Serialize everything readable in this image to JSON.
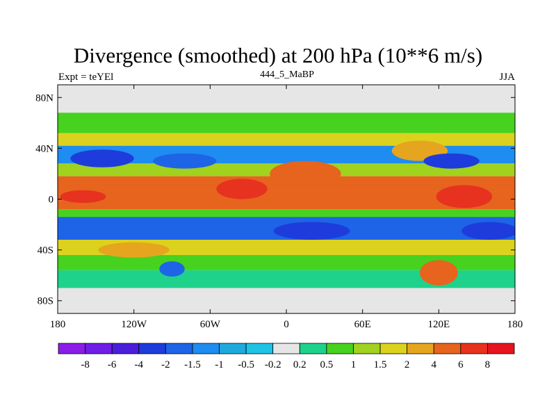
{
  "title": "Divergence (smoothed) at 200 hPa (10**6 m/s)",
  "left_label": "Expt = teYEl",
  "center_label": "444_5_MaBP",
  "right_label": "JJA",
  "chart_data": {
    "type": "heatmap",
    "title": "Divergence (smoothed) at 200 hPa (10**6 m/s)",
    "projection": "cylindrical equidistant",
    "xlim": [
      -180,
      180
    ],
    "ylim": [
      -90,
      90
    ],
    "x_ticks": [
      {
        "value": -180,
        "label": "180"
      },
      {
        "value": -120,
        "label": "120W"
      },
      {
        "value": -60,
        "label": "60W"
      },
      {
        "value": 0,
        "label": "0"
      },
      {
        "value": 60,
        "label": "60E"
      },
      {
        "value": 120,
        "label": "120E"
      },
      {
        "value": 180,
        "label": "180"
      }
    ],
    "y_ticks": [
      {
        "value": 80,
        "label": "80N"
      },
      {
        "value": 40,
        "label": "40N"
      },
      {
        "value": 0,
        "label": "0"
      },
      {
        "value": -40,
        "label": "40S"
      },
      {
        "value": -80,
        "label": "80S"
      }
    ],
    "colorbar": {
      "labels": [
        "-8",
        "-6",
        "-4",
        "-2",
        "-1.5",
        "-1",
        "-0.5",
        "-0.2",
        "0.2",
        "0.5",
        "1",
        "1.5",
        "2",
        "4",
        "6",
        "8"
      ],
      "colors": [
        "#8a1ee6",
        "#6e1ee6",
        "#4b1edc",
        "#1e3cdc",
        "#1e64e6",
        "#1e8cf0",
        "#1eaadc",
        "#1ec3e6",
        "#e6e6e6",
        "#1ed28c",
        "#46d21e",
        "#a0d21e",
        "#dcd21e",
        "#e6a51e",
        "#e6641e",
        "#e6321e",
        "#e6141e"
      ]
    },
    "bands": [
      {
        "lat_top": 90,
        "lat_bottom": 68,
        "value": 0
      },
      {
        "lat_top": 68,
        "lat_bottom": 52,
        "value": 0.5
      },
      {
        "lat_top": 52,
        "lat_bottom": 42,
        "value": 1.5
      },
      {
        "lat_top": 42,
        "lat_bottom": 28,
        "value": -1.5
      },
      {
        "lat_top": 28,
        "lat_bottom": 18,
        "value": 1
      },
      {
        "lat_top": 18,
        "lat_bottom": 6,
        "value": 4
      },
      {
        "lat_top": 6,
        "lat_bottom": -8,
        "value": 4
      },
      {
        "lat_top": -8,
        "lat_bottom": -14,
        "value": 0.5
      },
      {
        "lat_top": -14,
        "lat_bottom": -32,
        "value": -2
      },
      {
        "lat_top": -32,
        "lat_bottom": -44,
        "value": 1.5
      },
      {
        "lat_top": -44,
        "lat_bottom": -56,
        "value": 0.5
      },
      {
        "lat_top": -56,
        "lat_bottom": -70,
        "value": 0.2
      },
      {
        "lat_top": -70,
        "lat_bottom": -90,
        "value": 0
      }
    ],
    "blobs": [
      {
        "lon": -145,
        "lat": 32,
        "rx": 25,
        "ry": 7,
        "value": -4
      },
      {
        "lon": -80,
        "lat": 30,
        "rx": 25,
        "ry": 6,
        "value": -2
      },
      {
        "lon": -35,
        "lat": 8,
        "rx": 20,
        "ry": 8,
        "value": 6
      },
      {
        "lon": -160,
        "lat": 2,
        "rx": 18,
        "ry": 5,
        "value": 6
      },
      {
        "lon": 15,
        "lat": 20,
        "rx": 28,
        "ry": 10,
        "value": 4
      },
      {
        "lon": 105,
        "lat": 38,
        "rx": 22,
        "ry": 8,
        "value": 2
      },
      {
        "lon": 130,
        "lat": 30,
        "rx": 22,
        "ry": 6,
        "value": -4
      },
      {
        "lon": 140,
        "lat": 2,
        "rx": 22,
        "ry": 9,
        "value": 6
      },
      {
        "lon": 120,
        "lat": -58,
        "rx": 15,
        "ry": 10,
        "value": 4
      },
      {
        "lon": -120,
        "lat": -40,
        "rx": 28,
        "ry": 6,
        "value": 2
      },
      {
        "lon": 20,
        "lat": -25,
        "rx": 30,
        "ry": 7,
        "value": -4
      },
      {
        "lon": 160,
        "lat": -25,
        "rx": 22,
        "ry": 7,
        "value": -4
      },
      {
        "lon": -90,
        "lat": -55,
        "rx": 10,
        "ry": 6,
        "value": -2
      }
    ]
  }
}
